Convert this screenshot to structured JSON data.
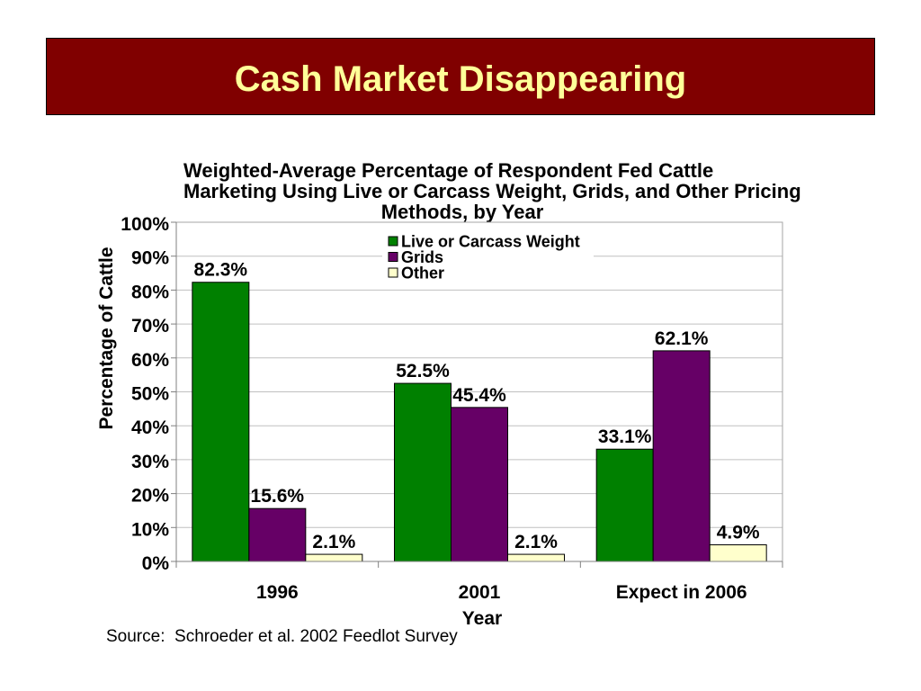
{
  "slide": {
    "title": "Cash Market Disappearing",
    "source": "Source:  Schroeder et al. 2002 Feedlot Survey",
    "banner_color": "#800000",
    "title_color": "#FFFF99"
  },
  "chart_data": {
    "type": "bar",
    "title_lines": [
      "Weighted-Average Percentage of Respondent Fed Cattle",
      "Marketing Using Live or Carcass Weight, Grids, and Other Pricing",
      "Methods, by Year"
    ],
    "xlabel": "Year",
    "ylabel": "Percentage of Cattle",
    "categories": [
      "1996",
      "2001",
      "Expect in 2006"
    ],
    "y_tick_labels": [
      "0%",
      "10%",
      "20%",
      "30%",
      "40%",
      "50%",
      "60%",
      "70%",
      "80%",
      "90%",
      "100%"
    ],
    "ylim": [
      0,
      100
    ],
    "grid": true,
    "legend_position": "top-center",
    "series": [
      {
        "name": "Live or Carcass Weight",
        "color": "#008000",
        "values": [
          82.3,
          52.5,
          33.1
        ],
        "labels": [
          "82.3%",
          "52.5%",
          "33.1%"
        ]
      },
      {
        "name": "Grids",
        "color": "#660066",
        "values": [
          15.6,
          45.4,
          62.1
        ],
        "labels": [
          "15.6%",
          "45.4%",
          "62.1%"
        ]
      },
      {
        "name": "Other",
        "color": "#FFFFCC",
        "values": [
          2.1,
          2.1,
          4.9
        ],
        "labels": [
          "2.1%",
          "2.1%",
          "4.9%"
        ]
      }
    ]
  }
}
